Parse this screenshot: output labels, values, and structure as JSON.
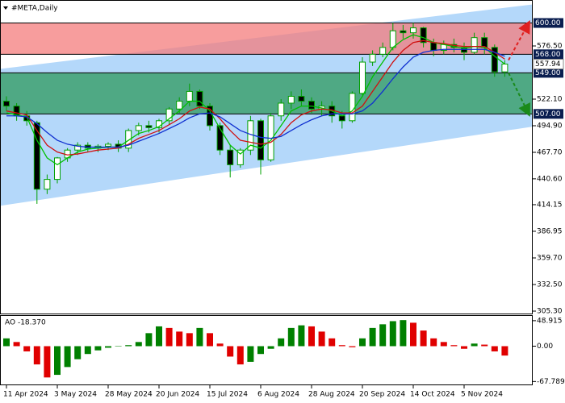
{
  "chart_data": [
    {
      "type": "candlestick",
      "title": "#META,Daily",
      "categories": [
        "11 Apr 2024",
        null,
        null,
        null,
        null,
        "3 May 2024",
        null,
        null,
        null,
        null,
        "28 May 2024",
        null,
        null,
        null,
        null,
        "20 Jun 2024",
        null,
        null,
        null,
        null,
        "15 Jul 2024",
        null,
        null,
        null,
        null,
        "6 Aug 2024",
        null,
        null,
        null,
        null,
        "28 Aug 2024",
        null,
        null,
        null,
        null,
        "20 Sep 2024",
        null,
        null,
        null,
        null,
        "14 Oct 2024",
        null,
        null,
        null,
        null,
        "5 Nov 2024",
        null,
        null,
        null,
        null
      ],
      "open": [
        520,
        515,
        505,
        498,
        430,
        440,
        462,
        470,
        475,
        472,
        474,
        476,
        472,
        490,
        495,
        493,
        500,
        512,
        520,
        530,
        515,
        495,
        470,
        455,
        470,
        500,
        460,
        505,
        518,
        525,
        520,
        512,
        515,
        505,
        500,
        528,
        560,
        568,
        575,
        592,
        590,
        595,
        580,
        572,
        578,
        575,
        570,
        585,
        575,
        550
      ],
      "high": [
        525,
        518,
        510,
        500,
        445,
        463,
        472,
        478,
        478,
        476,
        478,
        480,
        492,
        498,
        500,
        502,
        514,
        524,
        538,
        532,
        518,
        498,
        475,
        472,
        505,
        502,
        508,
        522,
        530,
        532,
        524,
        520,
        520,
        510,
        530,
        565,
        572,
        580,
        600,
        598,
        600,
        596,
        584,
        582,
        584,
        580,
        590,
        590,
        578,
        562
      ],
      "low": [
        510,
        500,
        495,
        415,
        425,
        436,
        458,
        465,
        468,
        468,
        470,
        468,
        468,
        485,
        488,
        488,
        496,
        508,
        515,
        512,
        490,
        465,
        442,
        452,
        465,
        445,
        458,
        500,
        512,
        515,
        508,
        505,
        498,
        492,
        498,
        526,
        556,
        565,
        572,
        584,
        584,
        575,
        566,
        568,
        570,
        562,
        568,
        568,
        545,
        545
      ],
      "close": [
        515,
        505,
        500,
        430,
        440,
        462,
        470,
        475,
        472,
        474,
        476,
        472,
        490,
        495,
        493,
        500,
        512,
        520,
        530,
        515,
        495,
        470,
        455,
        470,
        500,
        460,
        505,
        518,
        525,
        520,
        512,
        515,
        505,
        500,
        528,
        560,
        568,
        575,
        592,
        590,
        595,
        580,
        572,
        578,
        575,
        570,
        585,
        575,
        550,
        558
      ],
      "up_color": "#ffffff",
      "down_color": "#000000",
      "wick_color": "#00a000",
      "series": [
        {
          "color": "#00c000",
          "values": [
            508,
            506,
            504,
            480,
            462,
            455,
            462,
            468,
            471,
            472,
            473,
            473,
            480,
            487,
            490,
            494,
            502,
            510,
            520,
            520,
            510,
            492,
            475,
            466,
            475,
            472,
            480,
            495,
            510,
            515,
            515,
            513,
            510,
            505,
            510,
            525,
            545,
            560,
            575,
            583,
            588,
            585,
            580,
            578,
            576,
            574,
            576,
            575,
            566,
            558
          ]
        },
        {
          "color": "#d01010",
          "values": [
            510,
            508,
            506,
            490,
            475,
            468,
            465,
            466,
            468,
            470,
            471,
            472,
            476,
            482,
            486,
            490,
            496,
            502,
            510,
            514,
            512,
            502,
            490,
            480,
            478,
            476,
            478,
            486,
            498,
            506,
            510,
            512,
            511,
            508,
            508,
            515,
            530,
            545,
            560,
            572,
            580,
            582,
            580,
            579,
            577,
            576,
            576,
            576,
            570,
            563
          ]
        },
        {
          "color": "#1030d0",
          "values": [
            505,
            505,
            504,
            497,
            488,
            480,
            476,
            474,
            473,
            473,
            473,
            473,
            475,
            479,
            483,
            487,
            492,
            497,
            503,
            507,
            508,
            504,
            497,
            490,
            486,
            483,
            482,
            484,
            490,
            496,
            501,
            505,
            507,
            507,
            507,
            510,
            518,
            530,
            543,
            555,
            565,
            570,
            572,
            573,
            573,
            573,
            573,
            573,
            570,
            566
          ]
        }
      ],
      "ylim": [
        302,
        623.5
      ],
      "yticks": [
        {
          "value": 576.5,
          "label": "576.50"
        },
        {
          "value": 522.1,
          "label": "522.10"
        },
        {
          "value": 494.9,
          "label": "494.90"
        },
        {
          "value": 467.7,
          "label": "467.70"
        },
        {
          "value": 440.6,
          "label": "440.60"
        },
        {
          "value": 414.15,
          "label": "414.15"
        },
        {
          "value": 386.95,
          "label": "386.95"
        },
        {
          "value": 359.7,
          "label": "359.70"
        },
        {
          "value": 332.5,
          "label": "332.50"
        },
        {
          "value": 305.3,
          "label": "305.30"
        }
      ],
      "channel": {
        "color": "#b4d8fa",
        "upper": [
          553,
          619
        ],
        "lower": [
          413,
          494
        ]
      },
      "zones": [
        {
          "from": 568,
          "to": 600,
          "color": "#f47c7c"
        },
        {
          "from": 507,
          "to": 549,
          "color": "#2e9a5c"
        }
      ],
      "levels": [
        {
          "value": 600,
          "label": "600.00"
        },
        {
          "value": 568,
          "label": "568.00"
        },
        {
          "value": 549,
          "label": "549.00"
        },
        {
          "value": 507,
          "label": "507.00"
        }
      ],
      "current_price": {
        "value": 557.94,
        "label": "557.94"
      },
      "arrows": [
        {
          "from": 562,
          "to": 600,
          "color": "#e02020"
        },
        {
          "from": 549,
          "to": 507,
          "color": "#1a8a1a"
        }
      ]
    },
    {
      "type": "bar",
      "title": "AO -18.370",
      "values": [
        15,
        8,
        -10,
        -35,
        -60,
        -55,
        -40,
        -25,
        -15,
        -8,
        -3,
        0,
        2,
        8,
        25,
        38,
        35,
        28,
        25,
        35,
        25,
        5,
        -20,
        -35,
        -30,
        -15,
        -5,
        15,
        35,
        40,
        38,
        28,
        15,
        2,
        -2,
        15,
        35,
        42,
        48,
        50,
        45,
        30,
        15,
        8,
        2,
        -5,
        5,
        3,
        -10,
        -18
      ],
      "up_color": "#008000",
      "down_color": "#e00000",
      "ylim": [
        -75,
        58
      ],
      "yticks": [
        {
          "value": 48.915,
          "label": "48.915"
        },
        {
          "value": 0,
          "label": "0.00"
        },
        {
          "value": -67.789,
          "label": "-67.789"
        }
      ]
    }
  ]
}
